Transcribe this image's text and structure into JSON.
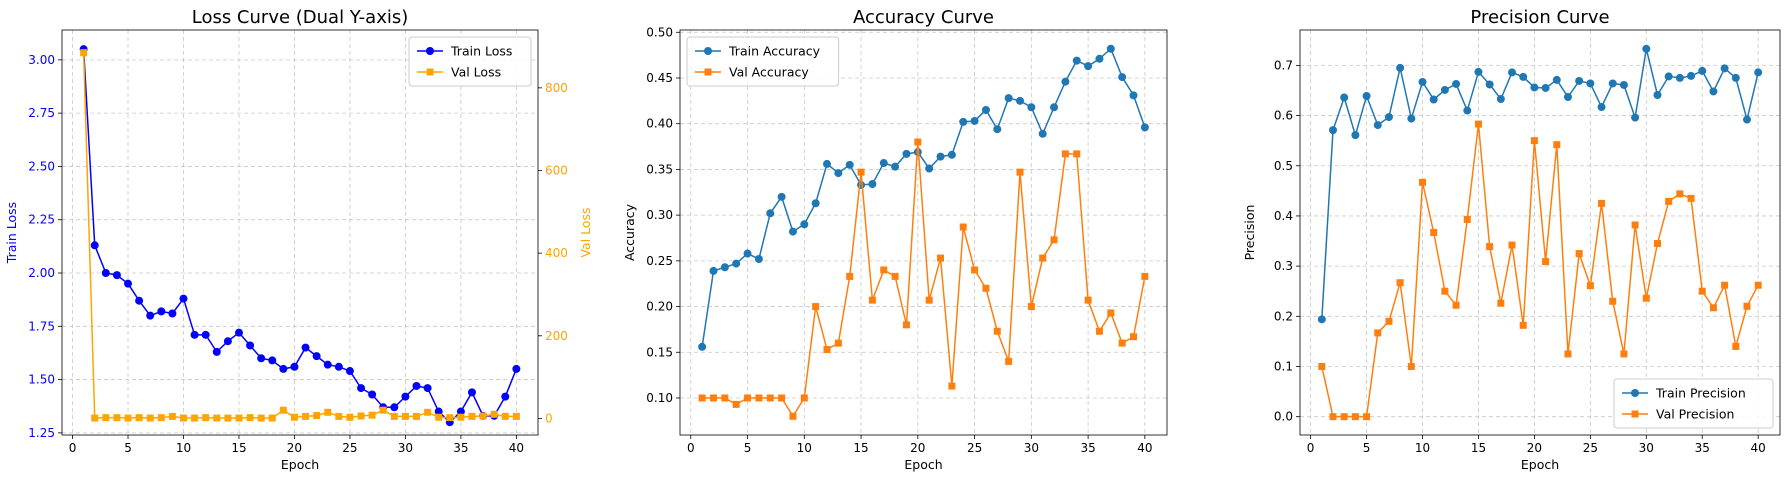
{
  "chart_data": [
    {
      "type": "line",
      "title": "Loss Curve (Dual Y-axis)",
      "xlabel": "Epoch",
      "ylabel": "Train Loss",
      "ylabel_right": "Val Loss",
      "xlim": [
        -0.95,
        41.95
      ],
      "ylim": [
        1.24,
        3.14
      ],
      "ylim_right": [
        -40,
        940
      ],
      "xticks": [
        0,
        5,
        10,
        15,
        20,
        25,
        30,
        35,
        40
      ],
      "yticks": [
        1.25,
        1.5,
        1.75,
        2.0,
        2.25,
        2.5,
        2.75,
        3.0
      ],
      "yticks_right": [
        0,
        200,
        400,
        600,
        800
      ],
      "ytick_labels": [
        "1.25",
        "1.50",
        "1.75",
        "2.00",
        "2.25",
        "2.50",
        "2.75",
        "3.00"
      ],
      "grid": true,
      "legend_position": "top-right",
      "left_color": "#0000ff",
      "right_color": "#ffa500",
      "x": [
        1,
        2,
        3,
        4,
        5,
        6,
        7,
        8,
        9,
        10,
        11,
        12,
        13,
        14,
        15,
        16,
        17,
        18,
        19,
        20,
        21,
        22,
        23,
        24,
        25,
        26,
        27,
        28,
        29,
        30,
        31,
        32,
        33,
        34,
        35,
        36,
        37,
        38,
        39,
        40
      ],
      "series": [
        {
          "name": "Train Loss",
          "axis": "left",
          "color": "#0000ff",
          "marker": "circle",
          "values": [
            3.05,
            2.13,
            2.0,
            1.99,
            1.95,
            1.87,
            1.8,
            1.82,
            1.81,
            1.88,
            1.71,
            1.71,
            1.63,
            1.68,
            1.72,
            1.66,
            1.6,
            1.59,
            1.55,
            1.56,
            1.65,
            1.61,
            1.57,
            1.56,
            1.54,
            1.46,
            1.43,
            1.37,
            1.37,
            1.42,
            1.47,
            1.46,
            1.35,
            1.3,
            1.35,
            1.44,
            1.33,
            1.33,
            1.42,
            1.55
          ]
        },
        {
          "name": "Val Loss",
          "axis": "right",
          "color": "#ffa500",
          "marker": "square",
          "values": [
            885,
            1,
            2,
            2,
            1,
            2,
            1,
            2,
            5,
            1,
            1,
            2,
            1,
            1,
            1,
            2,
            1,
            1,
            20,
            3,
            5,
            7,
            15,
            5,
            3,
            6,
            8,
            20,
            5,
            5,
            5,
            15,
            3,
            2,
            3,
            5,
            6,
            10,
            5,
            5
          ]
        }
      ]
    },
    {
      "type": "line",
      "title": "Accuracy Curve",
      "xlabel": "Epoch",
      "ylabel": "Accuracy",
      "xlim": [
        -0.95,
        41.95
      ],
      "ylim": [
        0.0595,
        0.5025
      ],
      "xticks": [
        0,
        5,
        10,
        15,
        20,
        25,
        30,
        35,
        40
      ],
      "yticks": [
        0.1,
        0.15,
        0.2,
        0.25,
        0.3,
        0.35,
        0.4,
        0.45,
        0.5
      ],
      "ytick_labels": [
        "0.10",
        "0.15",
        "0.20",
        "0.25",
        "0.30",
        "0.35",
        "0.40",
        "0.45",
        "0.50"
      ],
      "grid": true,
      "legend_position": "top-left",
      "x": [
        1,
        2,
        3,
        4,
        5,
        6,
        7,
        8,
        9,
        10,
        11,
        12,
        13,
        14,
        15,
        16,
        17,
        18,
        19,
        20,
        21,
        22,
        23,
        24,
        25,
        26,
        27,
        28,
        29,
        30,
        31,
        32,
        33,
        34,
        35,
        36,
        37,
        38,
        39,
        40
      ],
      "series": [
        {
          "name": "Train Accuracy",
          "color": "#1f77b4",
          "marker": "circle",
          "values": [
            0.156,
            0.239,
            0.243,
            0.247,
            0.258,
            0.252,
            0.302,
            0.32,
            0.282,
            0.29,
            0.313,
            0.356,
            0.346,
            0.355,
            0.333,
            0.334,
            0.357,
            0.353,
            0.367,
            0.369,
            0.351,
            0.364,
            0.366,
            0.402,
            0.403,
            0.415,
            0.394,
            0.428,
            0.425,
            0.418,
            0.389,
            0.418,
            0.446,
            0.469,
            0.463,
            0.471,
            0.482,
            0.451,
            0.431,
            0.396
          ]
        },
        {
          "name": "Val Accuracy",
          "color": "#ff7f0e",
          "marker": "square",
          "values": [
            0.1,
            0.1,
            0.1,
            0.093,
            0.1,
            0.1,
            0.1,
            0.1,
            0.08,
            0.1,
            0.2,
            0.153,
            0.16,
            0.233,
            0.347,
            0.207,
            0.24,
            0.233,
            0.18,
            0.38,
            0.207,
            0.253,
            0.113,
            0.287,
            0.24,
            0.22,
            0.173,
            0.14,
            0.347,
            0.2,
            0.253,
            0.273,
            0.367,
            0.367,
            0.207,
            0.173,
            0.193,
            0.16,
            0.167,
            0.233
          ]
        }
      ]
    },
    {
      "type": "line",
      "title": "Precision Curve",
      "xlabel": "Epoch",
      "ylabel": "Precision",
      "xlim": [
        -0.95,
        41.95
      ],
      "ylim": [
        -0.0365,
        0.7705
      ],
      "xticks": [
        0,
        5,
        10,
        15,
        20,
        25,
        30,
        35,
        40
      ],
      "yticks": [
        0.0,
        0.1,
        0.2,
        0.3,
        0.4,
        0.5,
        0.6,
        0.7
      ],
      "ytick_labels": [
        "0.0",
        "0.1",
        "0.2",
        "0.3",
        "0.4",
        "0.5",
        "0.6",
        "0.7"
      ],
      "grid": true,
      "legend_position": "bottom-right",
      "x": [
        1,
        2,
        3,
        4,
        5,
        6,
        7,
        8,
        9,
        10,
        11,
        12,
        13,
        14,
        15,
        16,
        17,
        18,
        19,
        20,
        21,
        22,
        23,
        24,
        25,
        26,
        27,
        28,
        29,
        30,
        31,
        32,
        33,
        34,
        35,
        36,
        37,
        38,
        39,
        40
      ],
      "series": [
        {
          "name": "Train Precision",
          "color": "#1f77b4",
          "marker": "circle",
          "values": [
            0.194,
            0.571,
            0.636,
            0.561,
            0.639,
            0.581,
            0.597,
            0.695,
            0.594,
            0.667,
            0.632,
            0.651,
            0.663,
            0.61,
            0.687,
            0.662,
            0.633,
            0.686,
            0.677,
            0.656,
            0.655,
            0.671,
            0.637,
            0.669,
            0.664,
            0.617,
            0.664,
            0.661,
            0.596,
            0.733,
            0.641,
            0.678,
            0.675,
            0.679,
            0.689,
            0.648,
            0.694,
            0.675,
            0.592,
            0.686
          ]
        },
        {
          "name": "Val Precision",
          "color": "#ff7f0e",
          "marker": "square",
          "values": [
            0.1,
            0.0,
            0.0,
            0.0,
            0.0,
            0.167,
            0.19,
            0.267,
            0.1,
            0.467,
            0.367,
            0.25,
            0.222,
            0.393,
            0.583,
            0.339,
            0.226,
            0.342,
            0.182,
            0.55,
            0.309,
            0.542,
            0.125,
            0.325,
            0.261,
            0.425,
            0.23,
            0.125,
            0.382,
            0.236,
            0.345,
            0.429,
            0.444,
            0.435,
            0.25,
            0.217,
            0.262,
            0.14,
            0.22,
            0.262
          ]
        }
      ]
    }
  ]
}
